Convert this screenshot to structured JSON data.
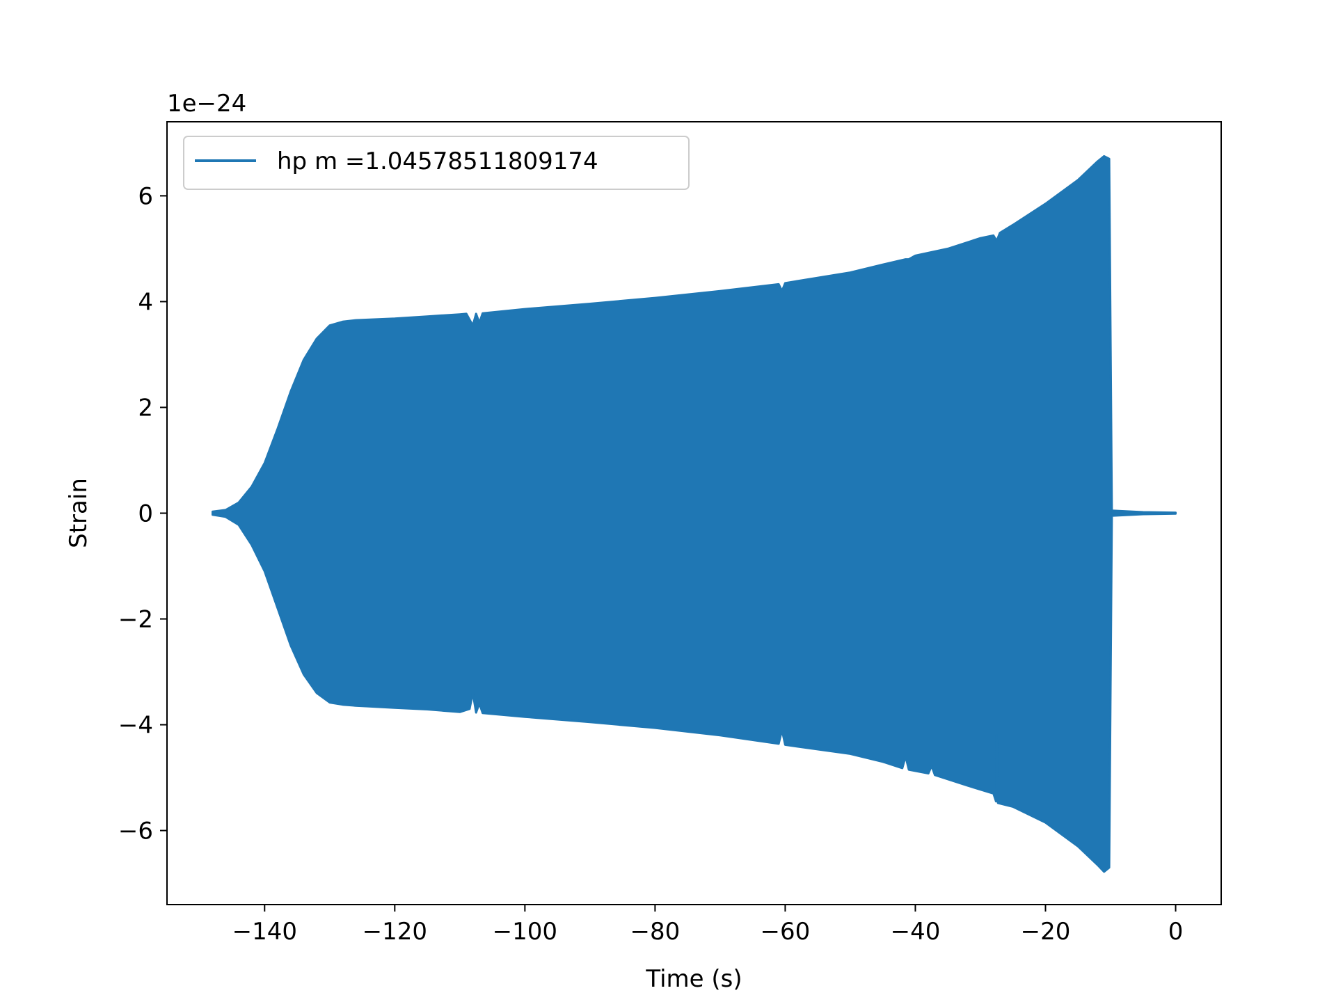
{
  "chart_data": {
    "type": "line",
    "xlabel": "Time (s)",
    "ylabel": "Strain",
    "y_offset_text": "1e−24",
    "y_scale_factor": 1e-24,
    "xlim": [
      -155,
      7
    ],
    "ylim": [
      -7.4,
      7.4
    ],
    "xticks": [
      -140,
      -120,
      -100,
      -80,
      -60,
      -40,
      -20,
      0
    ],
    "xtick_labels": [
      "−140",
      "−120",
      "−100",
      "−80",
      "−60",
      "−40",
      "−20",
      "0"
    ],
    "yticks": [
      -6,
      -4,
      -2,
      0,
      2,
      4,
      6
    ],
    "ytick_labels": [
      "−6",
      "−4",
      "−2",
      "0",
      "2",
      "4",
      "6"
    ],
    "grid": false,
    "legend_position": "top-left",
    "series": [
      {
        "name": "hp m =1.04578511809174",
        "color": "#1f77b4",
        "upper_envelope": [
          [
            -148,
            0.03
          ],
          [
            -146,
            0.06
          ],
          [
            -144,
            0.2
          ],
          [
            -142,
            0.5
          ],
          [
            -140,
            0.95
          ],
          [
            -138,
            1.6
          ],
          [
            -136,
            2.3
          ],
          [
            -134,
            2.9
          ],
          [
            -132,
            3.3
          ],
          [
            -130,
            3.55
          ],
          [
            -128,
            3.62
          ],
          [
            -126,
            3.65
          ],
          [
            -120,
            3.68
          ],
          [
            -115,
            3.72
          ],
          [
            -110,
            3.76
          ],
          [
            -109,
            3.77
          ],
          [
            -108,
            3.55
          ],
          [
            -107.5,
            3.77
          ],
          [
            -107,
            3.6
          ],
          [
            -106.5,
            3.78
          ],
          [
            -100,
            3.86
          ],
          [
            -90,
            3.96
          ],
          [
            -80,
            4.07
          ],
          [
            -70,
            4.2
          ],
          [
            -61,
            4.33
          ],
          [
            -60.5,
            4.2
          ],
          [
            -60,
            4.35
          ],
          [
            -50,
            4.55
          ],
          [
            -45,
            4.7
          ],
          [
            -41.5,
            4.8
          ],
          [
            -41,
            4.8
          ],
          [
            -40,
            4.87
          ],
          [
            -35,
            5.0
          ],
          [
            -30,
            5.2
          ],
          [
            -28,
            5.25
          ],
          [
            -27.5,
            5.15
          ],
          [
            -27,
            5.3
          ],
          [
            -25,
            5.45
          ],
          [
            -20,
            5.85
          ],
          [
            -15,
            6.3
          ],
          [
            -12,
            6.65
          ],
          [
            -11,
            6.75
          ],
          [
            -10.2,
            6.7
          ],
          [
            -9.8,
            0.05
          ],
          [
            -5,
            0.02
          ],
          [
            0,
            0.01
          ]
        ],
        "lower_envelope": [
          [
            -148,
            -0.03
          ],
          [
            -146,
            -0.07
          ],
          [
            -144,
            -0.22
          ],
          [
            -142,
            -0.6
          ],
          [
            -140,
            -1.1
          ],
          [
            -138,
            -1.8
          ],
          [
            -136,
            -2.5
          ],
          [
            -134,
            -3.05
          ],
          [
            -132,
            -3.4
          ],
          [
            -130,
            -3.58
          ],
          [
            -128,
            -3.62
          ],
          [
            -126,
            -3.64
          ],
          [
            -120,
            -3.68
          ],
          [
            -115,
            -3.71
          ],
          [
            -110,
            -3.76
          ],
          [
            -108.5,
            -3.7
          ],
          [
            -108,
            -3.4
          ],
          [
            -107.5,
            -3.77
          ],
          [
            -107,
            -3.6
          ],
          [
            -106.5,
            -3.78
          ],
          [
            -100,
            -3.85
          ],
          [
            -90,
            -3.95
          ],
          [
            -80,
            -4.06
          ],
          [
            -70,
            -4.2
          ],
          [
            -61,
            -4.36
          ],
          [
            -60.5,
            -4.1
          ],
          [
            -60,
            -4.38
          ],
          [
            -50,
            -4.55
          ],
          [
            -45,
            -4.7
          ],
          [
            -42,
            -4.82
          ],
          [
            -41.5,
            -4.6
          ],
          [
            -41,
            -4.85
          ],
          [
            -38,
            -4.92
          ],
          [
            -37.5,
            -4.78
          ],
          [
            -37,
            -4.95
          ],
          [
            -32,
            -5.15
          ],
          [
            -28,
            -5.3
          ],
          [
            -27.6,
            -5.45
          ],
          [
            -27.5,
            -4.2
          ],
          [
            -27.3,
            -5.48
          ],
          [
            -25,
            -5.55
          ],
          [
            -20,
            -5.85
          ],
          [
            -15,
            -6.3
          ],
          [
            -12,
            -6.65
          ],
          [
            -11,
            -6.78
          ],
          [
            -10.2,
            -6.7
          ],
          [
            -9.8,
            -0.05
          ],
          [
            -5,
            -0.02
          ],
          [
            0,
            -0.01
          ]
        ]
      }
    ]
  }
}
